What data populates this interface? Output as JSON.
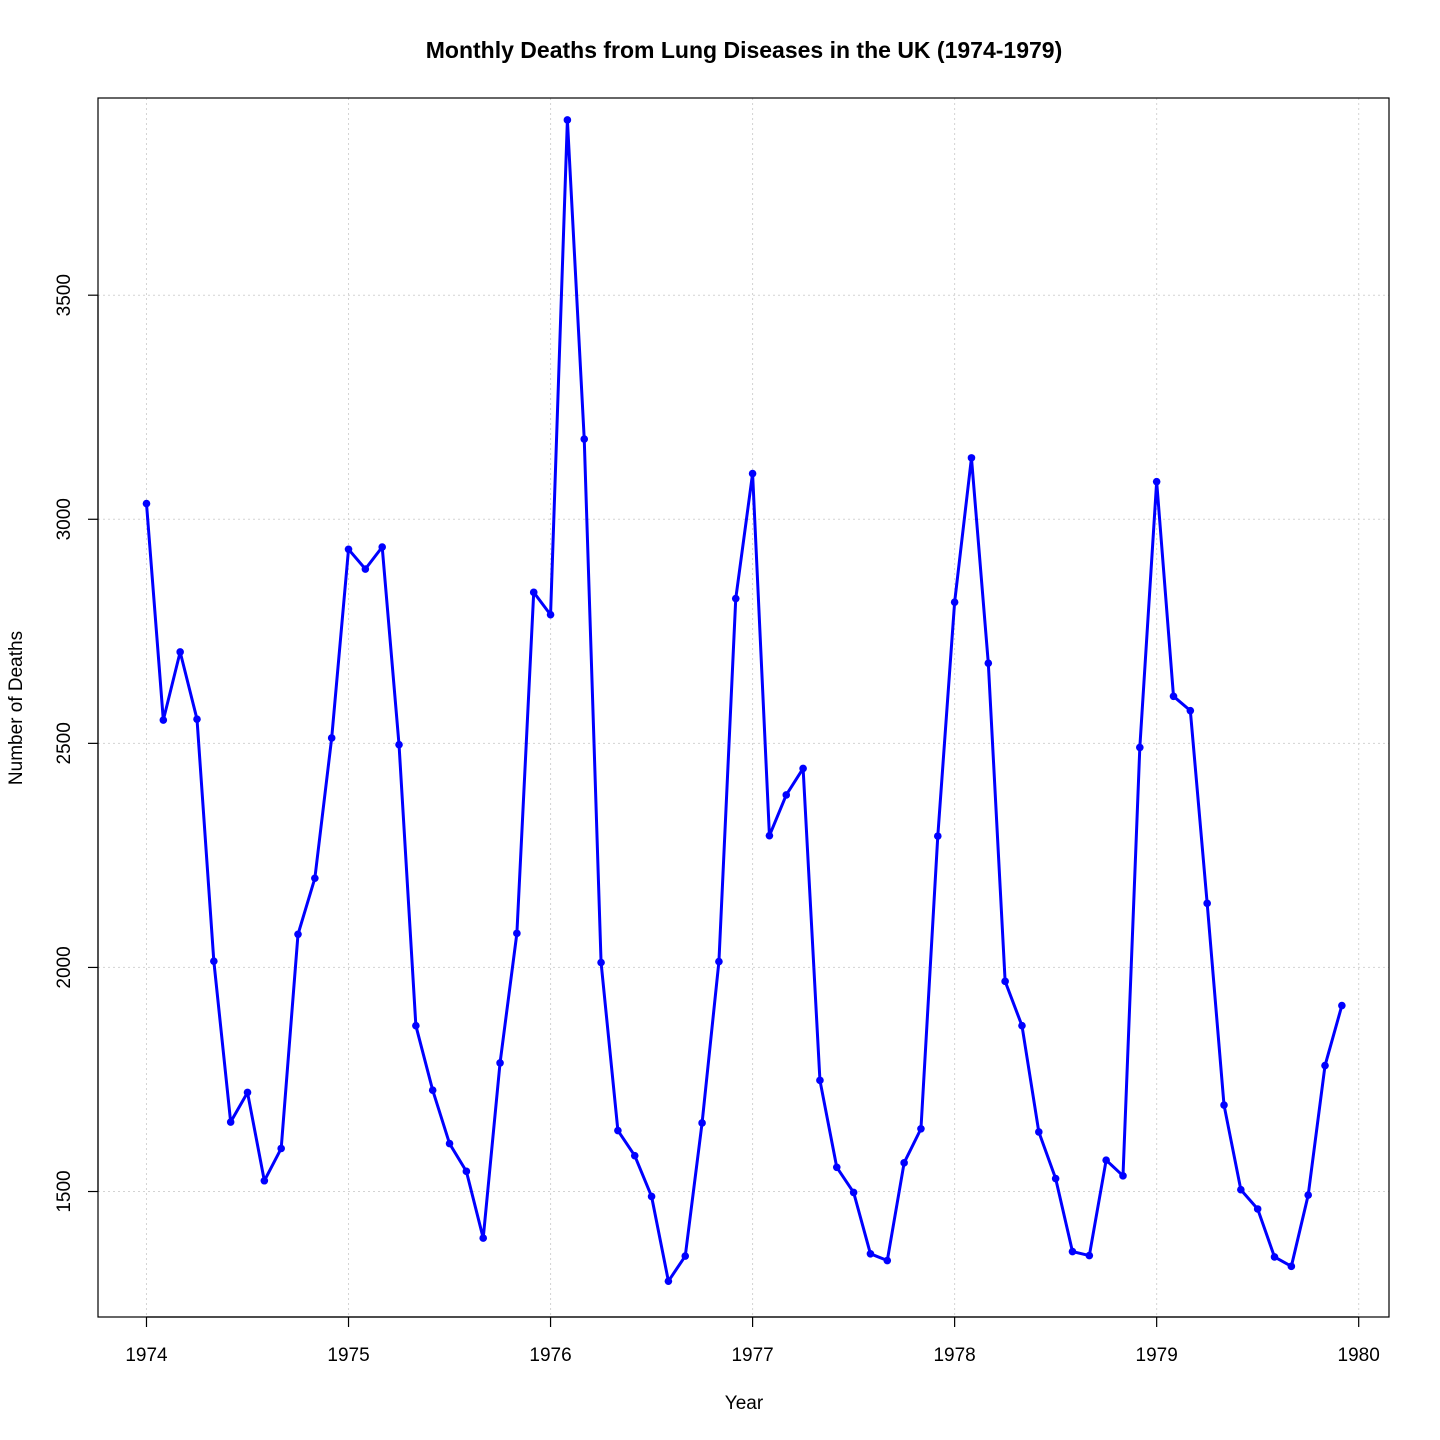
{
  "chart_data": {
    "type": "line",
    "title": "Monthly Deaths from Lung Diseases in the UK (1974-1979)",
    "xlabel": "Year",
    "ylabel": "Number of Deaths",
    "xlim": [
      1973.76,
      1980.15
    ],
    "ylim": [
      1220,
      3940
    ],
    "x_ticks": [
      1974,
      1975,
      1976,
      1977,
      1978,
      1979,
      1980
    ],
    "y_ticks": [
      1500,
      2000,
      2500,
      3000,
      3500
    ],
    "grid": true,
    "color": "#0000ff",
    "x_start": 1974,
    "x_step": 0.08333333,
    "series": [
      {
        "values": [
          3035,
          2552,
          2704,
          2554,
          2014,
          1655,
          1721,
          1524,
          1596,
          2074,
          2199,
          2512,
          2933,
          2889,
          2938,
          2497,
          1870,
          1726,
          1607,
          1545,
          1396,
          1787,
          2076,
          2837,
          2787,
          3891,
          3179,
          2011,
          1636,
          1580,
          1489,
          1300,
          1356,
          1653,
          2013,
          2823,
          3102,
          2294,
          2385,
          2444,
          1748,
          1554,
          1498,
          1361,
          1346,
          1564,
          1640,
          2293,
          2815,
          3137,
          2679,
          1969,
          1870,
          1633,
          1529,
          1366,
          1357,
          1570,
          1535,
          2491,
          3084,
          2605,
          2573,
          2143,
          1693,
          1504,
          1461,
          1354,
          1333,
          1492,
          1781,
          1915
        ]
      }
    ]
  }
}
